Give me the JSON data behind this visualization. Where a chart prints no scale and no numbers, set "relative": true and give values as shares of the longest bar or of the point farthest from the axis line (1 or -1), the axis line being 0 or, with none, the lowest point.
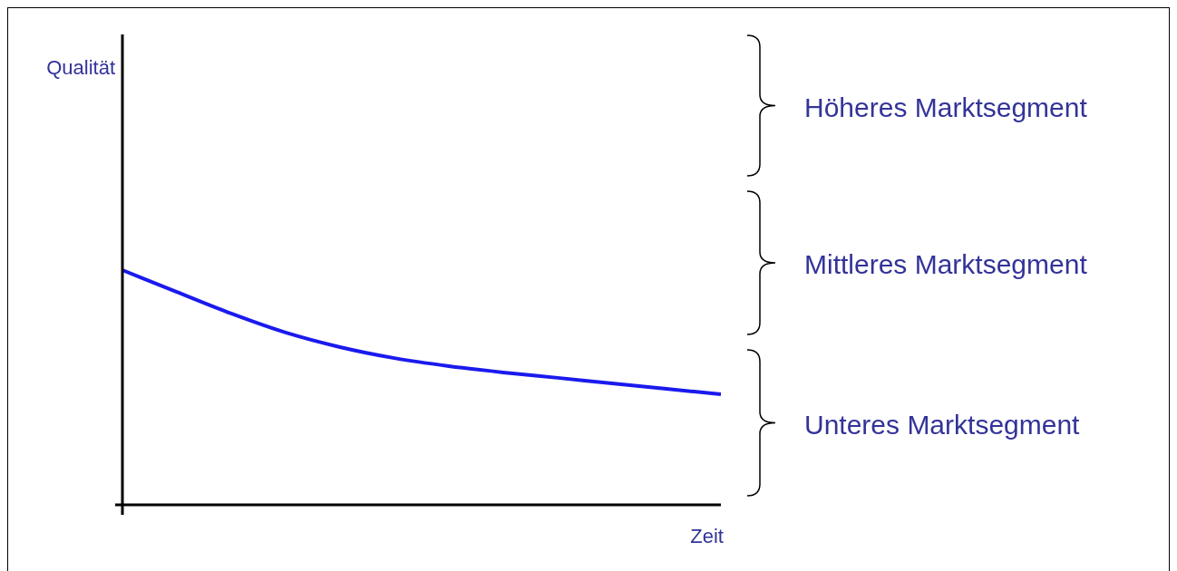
{
  "chart_data": {
    "type": "line",
    "relative": true,
    "xlabel": "Zeit",
    "categories": [
      null,
      null,
      null,
      null,
      null,
      null,
      null,
      null,
      null,
      null,
      null,
      null
    ],
    "series": [
      {
        "color": "#1a1aee",
        "values": [
          1,
          0.907,
          0.815,
          0.734,
          0.672,
          0.625,
          0.591,
          0.564,
          0.541,
          0.517,
          0.494,
          0.471
        ]
      }
    ],
    "annotations": [
      "Qualität",
      "Höheres Marktsegment",
      "Mittleres Marktsegment",
      "Unteres Marktsegment"
    ]
  }
}
